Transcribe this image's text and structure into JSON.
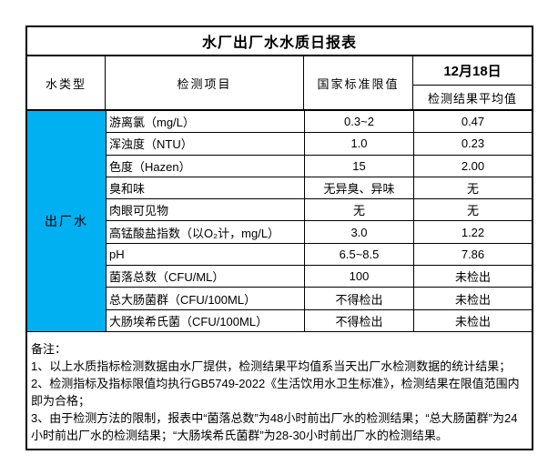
{
  "report": {
    "title": "水厂出厂水水质日报表",
    "columns": {
      "water_type": "水类型",
      "item": "检测项目",
      "standard_limit": "国家标准限值",
      "date": "12月18日",
      "result_avg": "检测结果平均值"
    },
    "water_type_value": "出厂水",
    "rows": [
      {
        "item": "游离氯（mg/L）",
        "limit": "0.3~2",
        "result": "0.47"
      },
      {
        "item": "浑浊度（NTU）",
        "limit": "1.0",
        "result": "0.23"
      },
      {
        "item": "色度（Hazen）",
        "limit": "15",
        "result": "2.00"
      },
      {
        "item": "臭和味",
        "limit": "无异臭、异味",
        "result": "无"
      },
      {
        "item": "肉眼可见物",
        "limit": "无",
        "result": "无"
      },
      {
        "item": "高锰酸盐指数（以O₂计，mg/L）",
        "limit": "3.0",
        "result": "1.22"
      },
      {
        "item": "pH",
        "limit": "6.5~8.5",
        "result": "7.86"
      },
      {
        "item": "菌落总数（CFU/ML）",
        "limit": "100",
        "result": "未检出"
      },
      {
        "item": "总大肠菌群（CFU/100ML）",
        "limit": "不得检出",
        "result": "未检出"
      },
      {
        "item": "大肠埃希氏菌（CFU/100ML）",
        "limit": "不得检出",
        "result": "未检出"
      }
    ],
    "notes": {
      "label": "备注：",
      "items": [
        "1、以上水质指标检测数据由水厂提供，检测结果平均值系当天出厂水检测数据的统计结果；",
        "2、检测指标及指标限值均执行GB5749-2022《生活饮用水卫生标准》，检测结果在限值范围内即为合格；",
        "3、由于检测方法的限制，报表中“菌落总数”为48小时前出厂水的检测结果；“总大肠菌群”为24小时前出厂水的检测结果；“大肠埃希氏菌群”为28-30小时前出厂水的检测结果。"
      ]
    },
    "colors": {
      "water_type_bg": "#00B0F0",
      "border": "#000000"
    }
  }
}
